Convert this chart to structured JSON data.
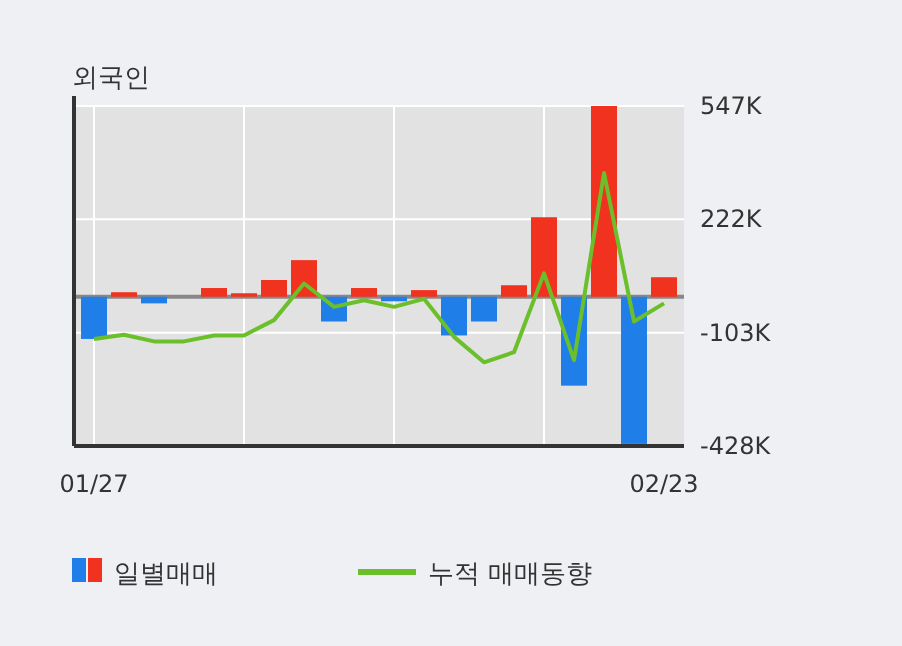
{
  "chart_data": {
    "type": "bar",
    "title": "외국인",
    "categories": [
      "01/27",
      null,
      null,
      null,
      null,
      null,
      null,
      null,
      null,
      null,
      null,
      null,
      null,
      null,
      null,
      null,
      null,
      null,
      null,
      "02/23"
    ],
    "series": [
      {
        "name": "일별매매",
        "colors": [
          "#1f7ee8",
          "#f0321e",
          "#1f7ee8",
          "#f0321e",
          "#f0321e",
          "#f0321e",
          "#f0321e",
          "#f0321e",
          "#1f7ee8",
          "#f0321e",
          "#1f7ee8",
          "#f0321e",
          "#1f7ee8",
          "#1f7ee8",
          "#f0321e",
          "#f0321e",
          "#1f7ee8",
          "#f0321e",
          "#1f7ee8",
          "#f0321e"
        ],
        "values": [
          -121,
          13,
          -19,
          0,
          25,
          10,
          48,
          105,
          -71,
          25,
          -13,
          19,
          -111,
          -71,
          33,
          228,
          -255,
          547,
          -422,
          56
        ]
      },
      {
        "name": "누적 매매동향",
        "type": "line",
        "color": "#6abf2a",
        "values": [
          -121,
          -109,
          -128,
          -128,
          -111,
          -111,
          -67,
          38,
          -29,
          -10,
          -29,
          -6,
          -115,
          -188,
          -159,
          67,
          -182,
          355,
          -71,
          -19
        ]
      }
    ],
    "ylim": [
      -428,
      547
    ],
    "yticks": [
      {
        "value": 547,
        "label": "547K"
      },
      {
        "value": 222,
        "label": "222K"
      },
      {
        "value": -103,
        "label": "-103K"
      },
      {
        "value": -428,
        "label": "-428K"
      }
    ],
    "ref_lines": [
      {
        "axis": "y",
        "value": 0,
        "color": "#888888"
      }
    ],
    "grid": true,
    "legend": "bottom"
  }
}
